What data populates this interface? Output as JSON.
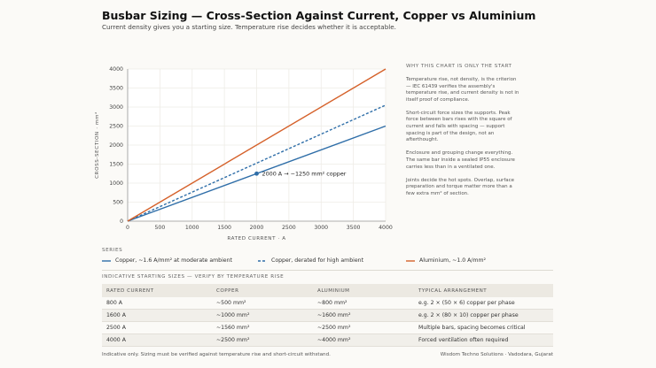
{
  "header": {
    "title": "Busbar Sizing — Cross-Section Against Current, Copper vs Aluminium",
    "subtitle": "Current density gives you a starting size. Temperature rise decides whether it is acceptable."
  },
  "chart_data": {
    "type": "line",
    "xlabel": "RATED CURRENT · A",
    "ylabel": "CROSS-SECTION · mm²",
    "xlim": [
      0,
      4000
    ],
    "ylim": [
      0,
      4000
    ],
    "xticks": [
      0,
      500,
      1000,
      1500,
      2000,
      2500,
      3000,
      3500,
      4000
    ],
    "yticks": [
      0,
      500,
      1000,
      1500,
      2000,
      2500,
      3000,
      3500,
      4000
    ],
    "grid": true,
    "legend_placement": "bottom",
    "series": [
      {
        "name": "Copper, ~1.6 A/mm² at moderate ambient",
        "color": "#2f6ea8",
        "style": "solid",
        "x": [
          0,
          4000
        ],
        "y": [
          0,
          2500
        ]
      },
      {
        "name": "Copper, derated for high ambient",
        "color": "#2f6ea8",
        "style": "dashed",
        "x": [
          0,
          4000
        ],
        "y": [
          0,
          3050
        ]
      },
      {
        "name": "Aluminium, ~1.0 A/mm²",
        "color": "#d5612a",
        "style": "solid",
        "x": [
          0,
          4000
        ],
        "y": [
          0,
          4000
        ]
      }
    ],
    "annotations": [
      {
        "x": 2000,
        "y": 1250,
        "text": "2000 A → ~1250 mm² copper"
      }
    ]
  },
  "series_heading": "SERIES",
  "aside": {
    "title": "WHY THIS CHART IS ONLY THE START",
    "paragraphs": [
      "Temperature rise, not density, is the criterion — IEC 61439 verifies the assembly's temperature rise, and current density is not in itself proof of compliance.",
      "Short-circuit force sizes the supports. Peak force between bars rises with the square of current and falls with spacing — support spacing is part of the design, not an afterthought.",
      "Enclosure and grouping change everything. The same bar inside a sealed IP55 enclosure carries less than in a ventilated one.",
      "Joints decide the hot spots. Overlap, surface preparation and torque matter more than a few extra mm² of section."
    ]
  },
  "table": {
    "title": "INDICATIVE STARTING SIZES — VERIFY BY TEMPERATURE RISE",
    "headers": [
      "RATED CURRENT",
      "COPPER",
      "ALUMINIUM",
      "TYPICAL ARRANGEMENT"
    ],
    "rows": [
      [
        "800 A",
        "~500 mm²",
        "~800 mm²",
        "e.g. 2 × (50 × 6) copper per phase"
      ],
      [
        "1600 A",
        "~1000 mm²",
        "~1600 mm²",
        "e.g. 2 × (80 × 10) copper per phase"
      ],
      [
        "2500 A",
        "~1560 mm²",
        "~2500 mm²",
        "Multiple bars, spacing becomes critical"
      ],
      [
        "4000 A",
        "~2500 mm²",
        "~4000 mm²",
        "Forced ventilation often required"
      ]
    ]
  },
  "footer": {
    "note": "Indicative only. Sizing must be verified against temperature rise and short-circuit withstand.",
    "credit": "Wisdom Techno Solutions · Vadodara, Gujarat"
  }
}
